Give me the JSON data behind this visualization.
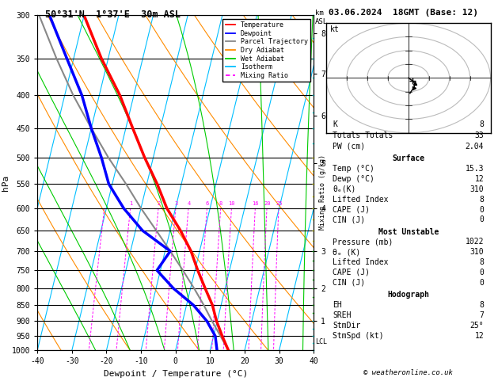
{
  "title_left": "50°31'N  1°37'E  30m ASL",
  "title_right": "03.06.2024  18GMT (Base: 12)",
  "xlabel": "Dewpoint / Temperature (°C)",
  "ylabel_left": "hPa",
  "pressure_ticks": [
    300,
    350,
    400,
    450,
    500,
    550,
    600,
    650,
    700,
    750,
    800,
    850,
    900,
    950,
    1000
  ],
  "isotherm_color": "#00bfff",
  "dry_adiabat_color": "#ff8c00",
  "wet_adiabat_color": "#00cc00",
  "mixing_ratio_color": "#ff00ff",
  "temp_profile_color": "red",
  "dewp_profile_color": "blue",
  "parcel_color": "#888888",
  "legend_items": [
    {
      "label": "Temperature",
      "color": "red"
    },
    {
      "label": "Dewpoint",
      "color": "blue"
    },
    {
      "label": "Parcel Trajectory",
      "color": "#888888"
    },
    {
      "label": "Dry Adiabat",
      "color": "#ff8c00"
    },
    {
      "label": "Wet Adiabat",
      "color": "#00cc00"
    },
    {
      "label": "Isotherm",
      "color": "#00bfff"
    },
    {
      "label": "Mixing Ratio",
      "color": "#ff00ff"
    }
  ],
  "km_ticks": [
    1,
    2,
    3,
    4,
    5,
    6,
    7,
    8
  ],
  "km_pressures": [
    900,
    800,
    700,
    600,
    510,
    430,
    370,
    320
  ],
  "right_panel": {
    "K": 8,
    "Totals_Totals": 33,
    "PW_cm": "2.04",
    "Surface_Temp": "15.3",
    "Surface_Dewp": "12",
    "Surface_theta_e": "310",
    "Surface_LI": "8",
    "Surface_CAPE": "0",
    "Surface_CIN": "0",
    "MU_Pressure": "1022",
    "MU_theta_e": "310",
    "MU_LI": "8",
    "MU_CAPE": "0",
    "MU_CIN": "0",
    "EH": "8",
    "SREH": "7",
    "StmDir": "25°",
    "StmSpd": "12"
  },
  "temp_data": {
    "pressure": [
      1000,
      950,
      900,
      850,
      800,
      750,
      700,
      650,
      600,
      550,
      500,
      450,
      400,
      350,
      300
    ],
    "temperature": [
      15.3,
      12.5,
      9.8,
      7.5,
      4.2,
      0.8,
      -2.5,
      -7.0,
      -12.5,
      -17.0,
      -22.5,
      -28.0,
      -34.0,
      -42.0,
      -50.0
    ]
  },
  "dewp_data": {
    "pressure": [
      1000,
      950,
      900,
      850,
      800,
      750,
      700,
      650,
      600,
      550,
      500,
      450,
      400,
      350,
      300
    ],
    "dewpoint": [
      12.0,
      10.5,
      7.0,
      2.0,
      -5.0,
      -11.0,
      -8.5,
      -18.0,
      -25.0,
      -31.0,
      -35.0,
      -40.0,
      -45.0,
      -52.0,
      -60.0
    ]
  },
  "parcel_data": {
    "pressure": [
      1000,
      950,
      900,
      850,
      800,
      750,
      700,
      650,
      600,
      550,
      500,
      450,
      400,
      350,
      300
    ],
    "temperature": [
      15.3,
      12.0,
      8.5,
      5.0,
      1.0,
      -3.5,
      -8.5,
      -14.0,
      -20.0,
      -26.0,
      -33.0,
      -40.0,
      -47.5,
      -55.0,
      -63.0
    ]
  },
  "copyright": "© weatheronline.co.uk",
  "LCL_pressure": 970,
  "wind_barbs_p": [
    1000,
    975,
    950,
    925,
    900,
    875,
    850,
    825,
    800,
    775,
    750,
    725,
    700,
    675,
    650,
    625,
    600,
    575,
    550,
    525,
    500,
    475,
    450,
    425,
    400,
    375,
    350,
    325,
    300
  ],
  "wind_barbs_u": [
    2,
    2,
    3,
    3,
    4,
    4,
    5,
    5,
    6,
    6,
    7,
    7,
    8,
    8,
    8,
    8,
    8,
    8,
    7,
    7,
    6,
    6,
    5,
    5,
    5,
    5,
    5,
    4,
    4
  ],
  "wind_barbs_v": [
    1,
    1,
    2,
    2,
    2,
    2,
    3,
    3,
    3,
    3,
    3,
    3,
    4,
    4,
    4,
    4,
    4,
    4,
    3,
    3,
    3,
    3,
    2,
    2,
    2,
    2,
    2,
    1,
    1
  ]
}
